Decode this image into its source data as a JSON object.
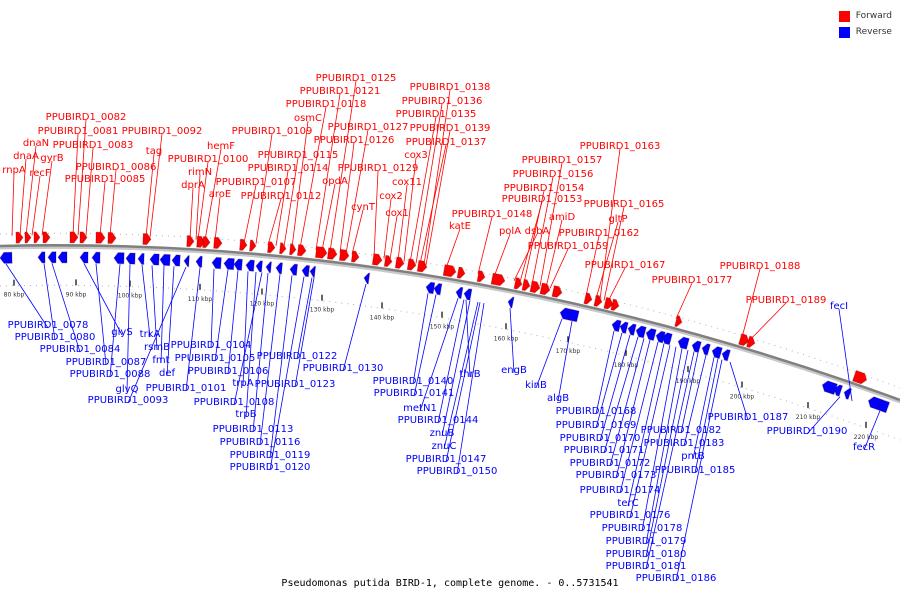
{
  "caption": "Pseudomonas putida BIRD-1, complete genome. - 0..5731541",
  "legend": [
    {
      "label": "Forward",
      "color": "#ff0000"
    },
    {
      "label": "Reverse",
      "color": "#0000ff"
    }
  ],
  "colors": {
    "forward": "#ff0000",
    "reverse": "#0000ff",
    "backbone": "#808080"
  },
  "ticks": [
    "80 kbp",
    "90 kbp",
    "100 kbp",
    "110 kbp",
    "120 kbp",
    "130 kbp",
    "140 kbp",
    "150 kbp",
    "160 kbp",
    "170 kbp",
    "180 kbp",
    "190 kbp",
    "200 kbp",
    "210 kbp",
    "220 kbp"
  ],
  "forward_labels": [
    "rnpA",
    "dnaA",
    "dnaN",
    "recF",
    "gyrB",
    "PPUBIRD1_0081",
    "PPUBIRD1_0082",
    "PPUBIRD1_0083",
    "PPUBIRD1_0085",
    "PPUBIRD1_0086",
    "PPUBIRD1_0092",
    "tag",
    "PPUBIRD1_0100",
    "hemF",
    "rimN",
    "dprA",
    "aroE",
    "PPUBIRD1_0107",
    "PPUBIRD1_0109",
    "PPUBIRD1_0112",
    "PPUBIRD1_0114",
    "PPUBIRD1_0115",
    "osmC",
    "PPUBIRD1_0118",
    "PPUBIRD1_0121",
    "PPUBIRD1_0125",
    "opdA",
    "PPUBIRD1_0126",
    "PPUBIRD1_0127",
    "cynT",
    "PPUBIRD1_0129",
    "cox2",
    "cox1",
    "cox11",
    "cox3",
    "PPUBIRD1_0135",
    "PPUBIRD1_0136",
    "PPUBIRD1_0137",
    "PPUBIRD1_0138",
    "PPUBIRD1_0139",
    "katE",
    "PPUBIRD1_0148",
    "polA",
    "dsbA",
    "PPUBIRD1_0153",
    "PPUBIRD1_0154",
    "PPUBIRD1_0156",
    "PPUBIRD1_0157",
    "amiD",
    "PPUBIRD1_0159",
    "PPUBIRD1_0162",
    "gltP",
    "PPUBIRD1_0163",
    "PPUBIRD1_0165",
    "PPUBIRD1_0167",
    "PPUBIRD1_0177",
    "PPUBIRD1_0188",
    "PPUBIRD1_0189"
  ],
  "reverse_labels": [
    "fecI",
    "PPUBIRD1_0078",
    "PPUBIRD1_0080",
    "PPUBIRD1_0084",
    "glyS",
    "PPUBIRD1_0087",
    "PPUBIRD1_0088",
    "glyQ",
    "trkA",
    "rsmB",
    "fmt",
    "def",
    "PPUBIRD1_0093",
    "PPUBIRD1_0101",
    "PPUBIRD1_0104",
    "PPUBIRD1_0105",
    "PPUBIRD1_0106",
    "trpA",
    "trpB",
    "PPUBIRD1_0108",
    "PPUBIRD1_0113",
    "PPUBIRD1_0116",
    "PPUBIRD1_0119",
    "PPUBIRD1_0120",
    "PPUBIRD1_0122",
    "PPUBIRD1_0123",
    "PPUBIRD1_0130",
    "PPUBIRD1_0140",
    "PPUBIRD1_0141",
    "metN1",
    "PPUBIRD1_0144",
    "znuB",
    "znuC",
    "thrB",
    "PPUBIRD1_0147",
    "PPUBIRD1_0150",
    "engB",
    "kinB",
    "algB",
    "PPUBIRD1_0168",
    "PPUBIRD1_0169",
    "PPUBIRD1_0170",
    "PPUBIRD1_0171",
    "PPUBIRD1_0172",
    "PPUBIRD1_0173",
    "PPUBIRD1_0174",
    "terC",
    "PPUBIRD1_0176",
    "PPUBIRD1_0178",
    "PPUBIRD1_0179",
    "PPUBIRD1_0180",
    "PPUBIRD1_0181",
    "PPUBIRD1_0182",
    "PPUBIRD1_0183",
    "pntB",
    "PPUBIRD1_0185",
    "PPUBIRD1_0186",
    "PPUBIRD1_0187",
    "PPUBIRD1_0190",
    "fecR"
  ]
}
